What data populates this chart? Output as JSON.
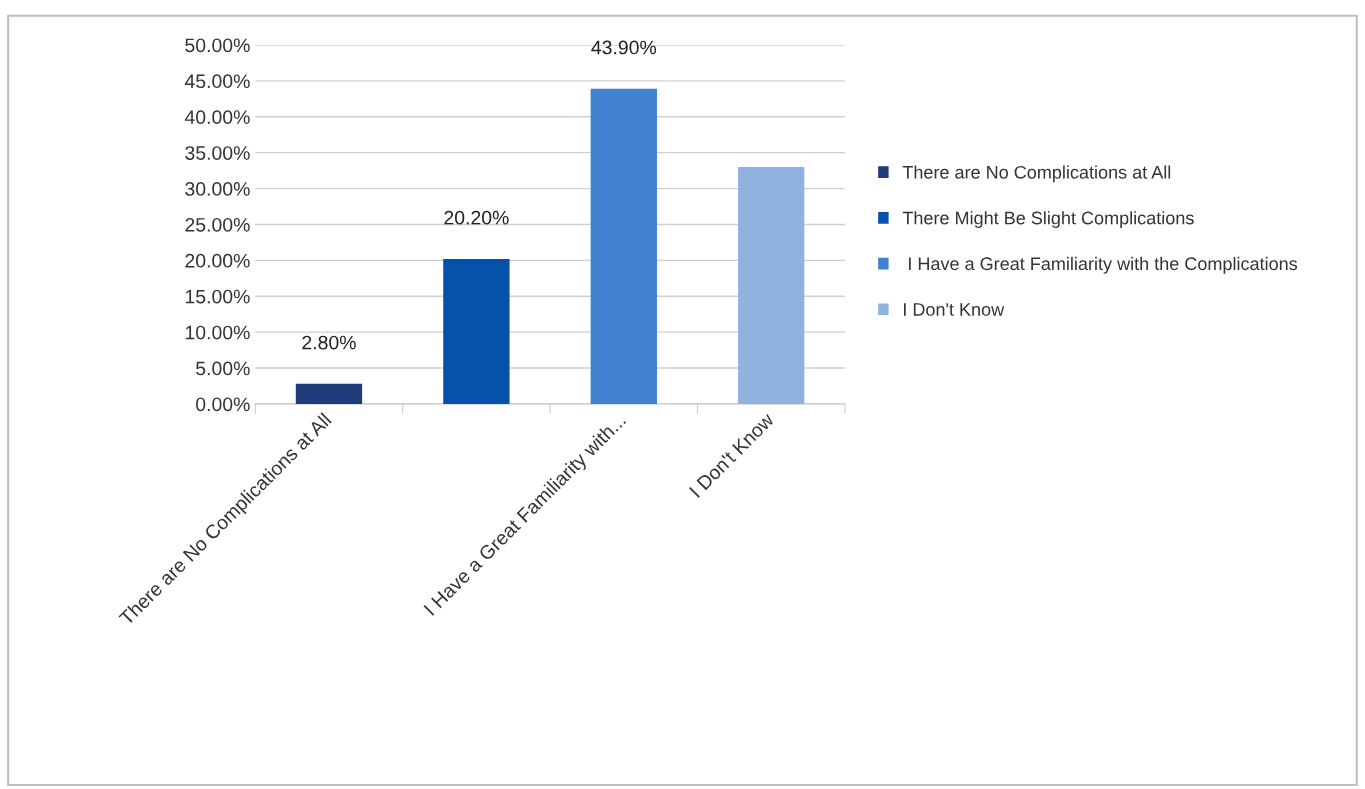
{
  "chart_data": {
    "type": "bar",
    "categories": [
      "There are No Complications at All",
      null,
      "I Have a Great Familiarity with...",
      "I Don't Know"
    ],
    "series": [
      {
        "name": "There are No Complications at All",
        "color": "#1f3b7a",
        "values": [
          2.8,
          null,
          null,
          null
        ],
        "value_labels": [
          "2.80%",
          null,
          null,
          null
        ]
      },
      {
        "name": "There Might Be Slight Complications",
        "color": "#0652aa",
        "values": [
          null,
          20.2,
          null,
          null
        ],
        "value_labels": [
          null,
          "20.20%",
          null,
          null
        ]
      },
      {
        "name": " I Have a Great Familiarity with the Complications",
        "color": "#4082cf",
        "values": [
          null,
          null,
          43.9,
          null
        ],
        "value_labels": [
          null,
          null,
          "43.90%",
          null
        ]
      },
      {
        "name": "I Don't Know",
        "color": "#8fb2de",
        "values": [
          null,
          null,
          null,
          33.0
        ],
        "value_labels": [
          null,
          null,
          null,
          null
        ]
      }
    ],
    "ylim": [
      0,
      50
    ],
    "yticks": [
      {
        "value": 0,
        "label": "0.00%"
      },
      {
        "value": 5,
        "label": "5.00%"
      },
      {
        "value": 10,
        "label": "10.00%"
      },
      {
        "value": 15,
        "label": "15.00%"
      },
      {
        "value": 20,
        "label": "20.00%"
      },
      {
        "value": 25,
        "label": "25.00%"
      },
      {
        "value": 30,
        "label": "30.00%"
      },
      {
        "value": 35,
        "label": "35.00%"
      },
      {
        "value": 40,
        "label": "40.00%"
      },
      {
        "value": 45,
        "label": "45.00%"
      },
      {
        "value": 50,
        "label": "50.00%"
      }
    ],
    "grid": "y",
    "legend": "right"
  }
}
